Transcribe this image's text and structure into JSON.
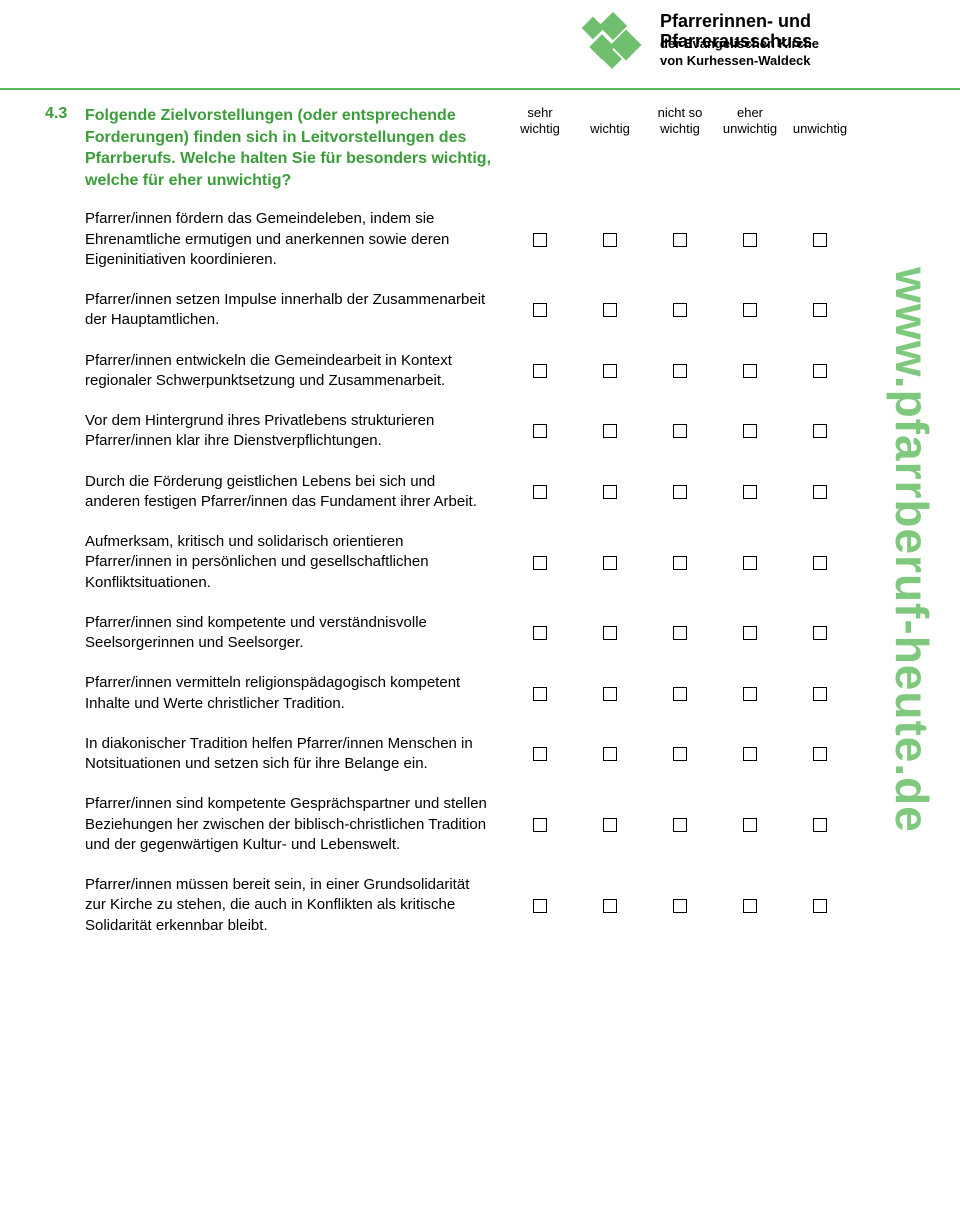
{
  "colors": {
    "accent_green": "#3a9d3a",
    "light_green": "#7fc97f",
    "rule_green": "#5cb85c",
    "logo_green": "#6fbf6f",
    "text": "#000000",
    "background": "#ffffff"
  },
  "typography": {
    "body_fontsize": 15,
    "heading_fontsize": 16,
    "header_title_fontsize": 18,
    "header_sub_fontsize": 13,
    "column_header_fontsize": 13,
    "side_url_fontsize": 46
  },
  "header": {
    "title": "Pfarrerinnen- und Pfarrerausschuss",
    "sub1": "der Evangelischen Kirche",
    "sub2": "von Kurhessen-Waldeck"
  },
  "side_url": "www.pfarrberuf-heute.de",
  "question": {
    "number": "4.3",
    "text": "Folgende Zielvorstellungen (oder entsprechende Forderungen) finden sich in Leitvorstellungen des Pfarrberufs. Welche halten Sie für besonders wichtig, welche für eher unwichtig?"
  },
  "columns": [
    "sehr wichtig",
    "wichtig",
    "nicht so wichtig",
    "eher unwichtig",
    "unwichtig"
  ],
  "items": [
    "Pfarrer/innen fördern das Gemeindeleben, indem sie Ehrenamtliche ermutigen und anerkennen sowie deren Eigeninitiativen koordinieren.",
    "Pfarrer/innen setzen Impulse innerhalb der Zusammenarbeit der Hauptamtlichen.",
    "Pfarrer/innen entwickeln die Gemeindearbeit in Kontext regionaler Schwerpunktsetzung und Zusammenarbeit.",
    "Vor dem Hintergrund ihres Privatlebens strukturieren Pfarrer/innen klar ihre Dienstverpflichtungen.",
    "Durch die Förderung geistlichen Lebens bei sich und anderen festigen Pfarrer/innen das Fundament ihrer Arbeit.",
    "Aufmerksam, kritisch und solidarisch orientieren Pfarrer/innen in persönlichen und gesellschaftlichen Konfliktsituationen.",
    "Pfarrer/innen sind kompetente und verständnisvolle Seelsorgerinnen und Seelsorger.",
    "Pfarrer/innen vermitteln religionspädagogisch kompetent Inhalte und Werte christlicher Tradition.",
    "In diakonischer Tradition helfen Pfarrer/innen Menschen in Notsituationen und setzen sich für ihre Belange ein.",
    "Pfarrer/innen sind kompetente Gesprächspartner und stellen Beziehungen her zwischen der biblisch-christlichen Tradition und der gegenwärtigen Kultur- und Lebenswelt.",
    "Pfarrer/innen müssen bereit sein, in einer Grundsolidarität zur Kirche zu stehen, die auch in Konflikten als kritische Solidarität erkennbar bleibt."
  ]
}
